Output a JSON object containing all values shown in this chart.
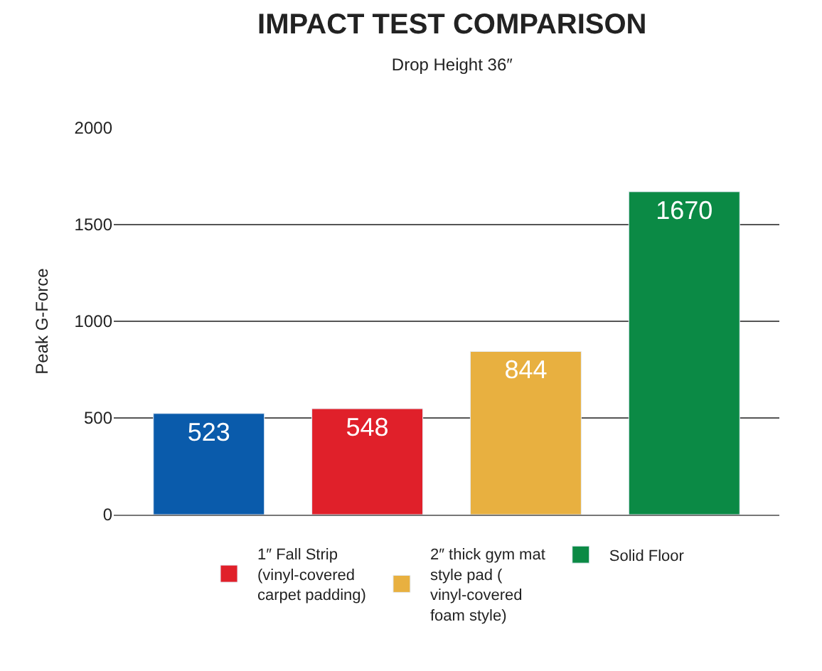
{
  "chart_data": {
    "type": "bar",
    "title": "IMPACT TEST COMPARISON",
    "subtitle": "Drop Height 36″",
    "ylabel": "Peak G-Force",
    "categories": [
      null,
      null,
      null,
      null
    ],
    "series": [
      {
        "color": "#0a5bab",
        "values": [
          523,
          null,
          null,
          null
        ]
      },
      {
        "name": "1″ Fall Strip (vinyl-covered carpet padding)",
        "color": "#e0202a",
        "values": [
          null,
          548,
          null,
          null
        ]
      },
      {
        "name": "2″ thick gym mat style pad ( vinyl-covered foam style)",
        "color": "#e8b040",
        "values": [
          null,
          null,
          844,
          null
        ]
      },
      {
        "name": "Solid Floor",
        "color": "#0b8a45",
        "values": [
          null,
          null,
          null,
          1670
        ]
      }
    ],
    "ylim": [
      0,
      2000
    ],
    "yticks": [
      0,
      500,
      1000,
      1500,
      2000
    ],
    "grid": "y",
    "legend": "bottom",
    "data_labels": true
  }
}
